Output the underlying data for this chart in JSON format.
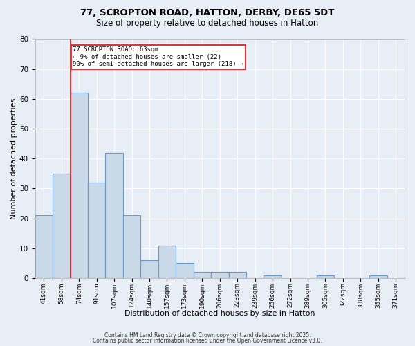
{
  "title1": "77, SCROPTON ROAD, HATTON, DERBY, DE65 5DT",
  "title2": "Size of property relative to detached houses in Hatton",
  "xlabel": "Distribution of detached houses by size in Hatton",
  "ylabel": "Number of detached properties",
  "categories": [
    "41sqm",
    "58sqm",
    "74sqm",
    "91sqm",
    "107sqm",
    "124sqm",
    "140sqm",
    "157sqm",
    "173sqm",
    "190sqm",
    "206sqm",
    "223sqm",
    "239sqm",
    "256sqm",
    "272sqm",
    "289sqm",
    "305sqm",
    "322sqm",
    "338sqm",
    "355sqm",
    "371sqm"
  ],
  "values": [
    21,
    35,
    62,
    32,
    42,
    21,
    6,
    11,
    5,
    2,
    2,
    2,
    0,
    1,
    0,
    0,
    1,
    0,
    0,
    1,
    0
  ],
  "bar_color": "#c9d9e8",
  "bar_edge_color": "#6699cc",
  "background_color": "#e8eef5",
  "grid_color": "#ffffff",
  "red_line_x": 1.5,
  "annotation_text": "77 SCROPTON ROAD: 63sqm\n← 9% of detached houses are smaller (22)\n90% of semi-detached houses are larger (218) →",
  "annotation_box_color": "#ff0000",
  "ylim": [
    0,
    80
  ],
  "yticks": [
    0,
    10,
    20,
    30,
    40,
    50,
    60,
    70,
    80
  ],
  "footer1": "Contains HM Land Registry data © Crown copyright and database right 2025.",
  "footer2": "Contains public sector information licensed under the Open Government Licence v3.0."
}
